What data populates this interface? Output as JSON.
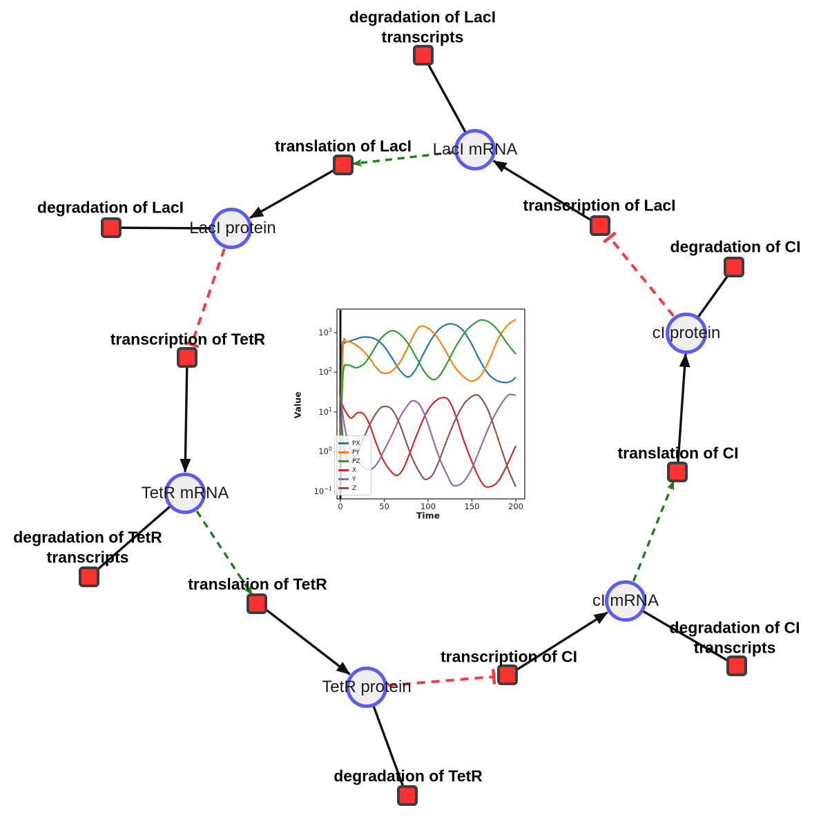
{
  "network": {
    "species": [
      {
        "id": "laci-mrna",
        "label": "LacI mRNA"
      },
      {
        "id": "laci-protein",
        "label": "LacI protein"
      },
      {
        "id": "tetr-mrna",
        "label": "TetR mRNA"
      },
      {
        "id": "tetr-protein",
        "label": "TetR protein"
      },
      {
        "id": "ci-mrna",
        "label": "cI mRNA"
      },
      {
        "id": "ci-protein",
        "label": "cI protein"
      }
    ],
    "reactions": [
      {
        "id": "degradation-laci-transcripts",
        "lines": [
          "degradation of LacI",
          "transcripts"
        ]
      },
      {
        "id": "translation-laci",
        "lines": [
          "translation of LacI"
        ]
      },
      {
        "id": "transcription-laci",
        "lines": [
          "transcription of LacI"
        ]
      },
      {
        "id": "degradation-laci",
        "lines": [
          "degradation of LacI"
        ]
      },
      {
        "id": "transcription-tetr",
        "lines": [
          "transcription of TetR"
        ]
      },
      {
        "id": "degradation-tetr-transcripts",
        "lines": [
          "degradation of TetR",
          "transcripts"
        ]
      },
      {
        "id": "translation-tetr",
        "lines": [
          "translation of TetR"
        ]
      },
      {
        "id": "degradation-tetr",
        "lines": [
          "degradation of TetR"
        ]
      },
      {
        "id": "transcription-ci",
        "lines": [
          "transcription of CI"
        ]
      },
      {
        "id": "degradation-ci-transcripts",
        "lines": [
          "degradation of CI",
          "transcripts"
        ]
      },
      {
        "id": "translation-ci",
        "lines": [
          "translation of CI"
        ]
      },
      {
        "id": "degradation-ci",
        "lines": [
          "degradation of CI"
        ]
      }
    ],
    "edges": [
      {
        "from": "LacI mRNA",
        "to": "degradation of LacI transcripts",
        "type": "consumption"
      },
      {
        "from": "LacI mRNA",
        "to": "translation of LacI",
        "type": "modifier"
      },
      {
        "from": "transcription of LacI",
        "to": "LacI mRNA",
        "type": "production"
      },
      {
        "from": "translation of LacI",
        "to": "LacI protein",
        "type": "production"
      },
      {
        "from": "LacI protein",
        "to": "degradation of LacI",
        "type": "consumption"
      },
      {
        "from": "LacI protein",
        "to": "transcription of TetR",
        "type": "inhibition"
      },
      {
        "from": "transcription of TetR",
        "to": "TetR mRNA",
        "type": "production"
      },
      {
        "from": "TetR mRNA",
        "to": "degradation of TetR transcripts",
        "type": "consumption"
      },
      {
        "from": "TetR mRNA",
        "to": "translation of TetR",
        "type": "modifier"
      },
      {
        "from": "translation of TetR",
        "to": "TetR protein",
        "type": "production"
      },
      {
        "from": "TetR protein",
        "to": "degradation of TetR",
        "type": "consumption"
      },
      {
        "from": "TetR protein",
        "to": "transcription of CI",
        "type": "inhibition"
      },
      {
        "from": "transcription of CI",
        "to": "cI mRNA",
        "type": "production"
      },
      {
        "from": "cI mRNA",
        "to": "degradation of CI transcripts",
        "type": "consumption"
      },
      {
        "from": "cI mRNA",
        "to": "translation of CI",
        "type": "modifier"
      },
      {
        "from": "translation of CI",
        "to": "cI protein",
        "type": "production"
      },
      {
        "from": "cI protein",
        "to": "degradation of CI",
        "type": "consumption"
      },
      {
        "from": "cI protein",
        "to": "transcription of LacI",
        "type": "inhibition"
      }
    ],
    "colors": {
      "species_fill": "#efefef",
      "species_border": "#5c5cf2",
      "reaction_fill": "#fa3232",
      "reaction_border": "#3d3d3d",
      "production_edge": "#111111",
      "modifier_edge": "#1e7d1e",
      "inhibition_edge": "#fa3b3b"
    }
  },
  "chart_data": {
    "type": "line",
    "title": "",
    "xlabel": "Time",
    "ylabel": "Value",
    "xscale": "linear",
    "yscale": "log",
    "xlim": [
      -8,
      210
    ],
    "xticks": [
      0,
      50,
      100,
      150,
      200
    ],
    "ytick_base": "10",
    "ytick_exponents": [
      "3",
      "2",
      "1",
      "0",
      "−1"
    ],
    "ylim": [
      0.065,
      4300
    ],
    "grid": false,
    "legend_position": "lower left",
    "annotations": [
      {
        "type": "vline",
        "x": 0,
        "color": "#000000",
        "width": 2.8
      }
    ],
    "series": [
      {
        "name": "PX",
        "color": "#1f77b4",
        "points": [
          [
            0,
            2
          ],
          [
            2,
            350
          ],
          [
            5,
            545
          ],
          [
            10,
            600
          ],
          [
            18,
            690
          ],
          [
            27,
            775
          ],
          [
            38,
            715
          ],
          [
            48,
            500
          ],
          [
            58,
            245
          ],
          [
            68,
            110
          ],
          [
            77,
            76
          ],
          [
            85,
            110
          ],
          [
            95,
            300
          ],
          [
            105,
            750
          ],
          [
            115,
            1350
          ],
          [
            126,
            1660
          ],
          [
            138,
            1250
          ],
          [
            148,
            600
          ],
          [
            158,
            220
          ],
          [
            168,
            95
          ],
          [
            178,
            62
          ],
          [
            188,
            55
          ],
          [
            195,
            60
          ],
          [
            200,
            75
          ]
        ]
      },
      {
        "name": "PY",
        "color": "#ff7f0e",
        "points": [
          [
            0,
            1
          ],
          [
            3,
            400
          ],
          [
            7,
            580
          ],
          [
            15,
            530
          ],
          [
            25,
            365
          ],
          [
            35,
            200
          ],
          [
            41,
            130
          ],
          [
            48,
            96
          ],
          [
            58,
            105
          ],
          [
            68,
            180
          ],
          [
            75,
            350
          ],
          [
            84,
            900
          ],
          [
            91,
            1430
          ],
          [
            100,
            1280
          ],
          [
            110,
            780
          ],
          [
            120,
            340
          ],
          [
            130,
            140
          ],
          [
            141,
            76
          ],
          [
            150,
            60
          ],
          [
            160,
            82
          ],
          [
            170,
            210
          ],
          [
            180,
            700
          ],
          [
            190,
            1480
          ],
          [
            200,
            2150
          ]
        ]
      },
      {
        "name": "PZ",
        "color": "#2ca02c",
        "points": [
          [
            0,
            1
          ],
          [
            3,
            90
          ],
          [
            8,
            150
          ],
          [
            14,
            138
          ],
          [
            20,
            132
          ],
          [
            28,
            172
          ],
          [
            36,
            310
          ],
          [
            46,
            700
          ],
          [
            58,
            1100
          ],
          [
            67,
            940
          ],
          [
            77,
            540
          ],
          [
            87,
            225
          ],
          [
            97,
            95
          ],
          [
            106,
            65
          ],
          [
            113,
            82
          ],
          [
            122,
            175
          ],
          [
            132,
            460
          ],
          [
            144,
            1150
          ],
          [
            157,
            1950
          ],
          [
            164,
            2050
          ],
          [
            172,
            1700
          ],
          [
            181,
            1050
          ],
          [
            190,
            540
          ],
          [
            200,
            285
          ]
        ]
      },
      {
        "name": "X",
        "color": "#d62728",
        "points": [
          [
            0,
            20
          ],
          [
            5,
            11
          ],
          [
            12,
            7
          ],
          [
            19,
            9.4
          ],
          [
            26,
            9
          ],
          [
            33,
            5
          ],
          [
            40,
            1.8
          ],
          [
            50,
            0.55
          ],
          [
            62,
            0.26
          ],
          [
            70,
            0.32
          ],
          [
            78,
            0.8
          ],
          [
            88,
            3
          ],
          [
            98,
            9.5
          ],
          [
            108,
            18.5
          ],
          [
            117,
            23
          ],
          [
            124,
            19
          ],
          [
            132,
            7.5
          ],
          [
            140,
            2.1
          ],
          [
            150,
            0.55
          ],
          [
            158,
            0.22
          ],
          [
            166,
            0.13
          ],
          [
            178,
            0.16
          ],
          [
            188,
            0.37
          ],
          [
            200,
            1.4
          ]
        ]
      },
      {
        "name": "Y",
        "color": "#9467bd",
        "points": [
          [
            0,
            25
          ],
          [
            5,
            4
          ],
          [
            12,
            1.1
          ],
          [
            20,
            0.55
          ],
          [
            28,
            0.38
          ],
          [
            34,
            0.35
          ],
          [
            42,
            0.5
          ],
          [
            50,
            1.1
          ],
          [
            60,
            3
          ],
          [
            68,
            7.5
          ],
          [
            76,
            14
          ],
          [
            82,
            19
          ],
          [
            90,
            15.5
          ],
          [
            98,
            6.5
          ],
          [
            106,
            1.9
          ],
          [
            114,
            0.6
          ],
          [
            122,
            0.25
          ],
          [
            129,
            0.14
          ],
          [
            140,
            0.17
          ],
          [
            150,
            0.38
          ],
          [
            160,
            1.3
          ],
          [
            170,
            4.5
          ],
          [
            180,
            12
          ],
          [
            190,
            25
          ],
          [
            195,
            27.5
          ],
          [
            200,
            26
          ]
        ]
      },
      {
        "name": "Z",
        "color": "#8c564b",
        "points": [
          [
            0,
            25
          ],
          [
            3,
            2
          ],
          [
            8,
            0.62
          ],
          [
            14,
            0.56
          ],
          [
            20,
            1
          ],
          [
            28,
            2.6
          ],
          [
            36,
            6.2
          ],
          [
            44,
            11.5
          ],
          [
            50,
            13.8
          ],
          [
            58,
            12
          ],
          [
            66,
            6
          ],
          [
            74,
            2
          ],
          [
            82,
            0.68
          ],
          [
            91,
            0.28
          ],
          [
            97,
            0.2
          ],
          [
            105,
            0.26
          ],
          [
            113,
            0.62
          ],
          [
            122,
            2.1
          ],
          [
            132,
            7
          ],
          [
            142,
            17
          ],
          [
            153,
            26.5
          ],
          [
            160,
            23
          ],
          [
            168,
            11.5
          ],
          [
            176,
            3.8
          ],
          [
            184,
            1.1
          ],
          [
            192,
            0.33
          ],
          [
            200,
            0.13
          ]
        ]
      }
    ]
  }
}
